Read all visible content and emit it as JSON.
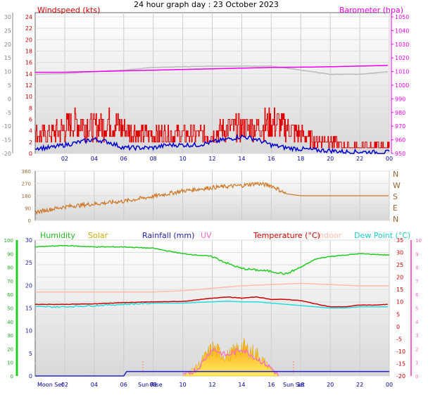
{
  "title": "24 hour graph day : 23 October 2023",
  "colors": {
    "wind_speed": "#e00000",
    "wind_avg": "#0000cc",
    "barometer": "#ee00ee",
    "barometer_prev": "#bbbbbb",
    "wind_dir": "#cc7722",
    "humidity": "#22cc22",
    "solar": "#f0c000",
    "rainfall": "#2222cc",
    "uv": "#ff66cc",
    "temperature": "#cc0000",
    "indoor": "#ffbbaa",
    "dew_point": "#22dddd",
    "x_ticks": "#000099",
    "axis_left": "#888888"
  },
  "chart_data": [
    {
      "type": "line",
      "x_tick_labels": [
        "02",
        "04",
        "06",
        "08",
        "10",
        "12",
        "14",
        "16",
        "18",
        "20",
        "22",
        "00"
      ],
      "left_axis": {
        "label": "Windspeed (kts)",
        "ylim": [
          0,
          24
        ],
        "ticks": [
          "0",
          "2",
          "4",
          "6",
          "8",
          "10",
          "12",
          "14",
          "16",
          "18",
          "20",
          "22",
          "24"
        ]
      },
      "right_axis": {
        "label": "Barometer (hpa)",
        "ylim": [
          950,
          1050
        ],
        "ticks": [
          "950",
          "960",
          "970",
          "980",
          "990",
          "1000",
          "1010",
          "1020",
          "1030",
          "1040",
          "1050"
        ]
      },
      "outer_axis": {
        "ticks": [
          "-20",
          "-15",
          "-10",
          "-5",
          "0",
          "5",
          "10",
          "15",
          "20",
          "25",
          "30"
        ]
      },
      "series": [
        {
          "name": "Windspeed (kts)",
          "x": [
            0,
            1,
            2,
            3,
            4,
            5,
            6,
            7,
            8,
            9,
            10,
            11,
            12,
            13,
            14,
            15,
            16,
            17,
            18,
            19,
            20,
            21,
            22,
            23,
            24
          ],
          "values": [
            3,
            3,
            4,
            5,
            4,
            5,
            4,
            3,
            3,
            3,
            3,
            3,
            3,
            4,
            4,
            4,
            5,
            4,
            3,
            2,
            2,
            1,
            1,
            1,
            1
          ]
        },
        {
          "x": [
            0,
            1,
            2,
            3,
            4,
            5,
            6,
            7,
            8,
            9,
            10,
            11,
            12,
            13,
            14,
            15,
            16,
            17,
            18,
            19,
            20,
            21,
            22,
            23,
            24
          ],
          "values": [
            1,
            1,
            1.5,
            2,
            2.5,
            2,
            1,
            1,
            1,
            1.5,
            1.5,
            1.5,
            2,
            2.5,
            3,
            2.5,
            1.5,
            1,
            0.8,
            0.6,
            0.5,
            0.3,
            0.3,
            0.2,
            0.2
          ]
        },
        {
          "name": "Barometer (hpa)",
          "x": [
            0,
            2,
            4,
            6,
            8,
            10,
            12,
            14,
            16,
            18,
            20,
            22,
            24
          ],
          "values": [
            1009.5,
            1009.5,
            1010,
            1010.5,
            1011,
            1011.5,
            1012,
            1012.5,
            1013,
            1013.2,
            1013.5,
            1014,
            1014.5
          ]
        },
        {
          "x": [
            0,
            2,
            4,
            6,
            8,
            10,
            12,
            14,
            16,
            18,
            20,
            22,
            24
          ],
          "values": [
            1008,
            1008.5,
            1010,
            1011,
            1013,
            1013.5,
            1014,
            1014,
            1014,
            1011,
            1008,
            1008,
            1010
          ]
        }
      ]
    },
    {
      "type": "line",
      "x_tick_labels": [
        "02",
        "04",
        "06",
        "08",
        "10",
        "12",
        "14",
        "16",
        "18",
        "20",
        "22",
        "00"
      ],
      "left_axis": {
        "ylim": [
          0,
          360
        ],
        "ticks": [
          "0",
          "90",
          "180",
          "270",
          "360"
        ]
      },
      "right_axis": {
        "ticks": [
          "N",
          "W",
          "S",
          "E",
          "N"
        ]
      },
      "series": [
        {
          "x": [
            0,
            2,
            4,
            6,
            8,
            10,
            12,
            14,
            15,
            16,
            17,
            18,
            20,
            22,
            24
          ],
          "values": [
            60,
            100,
            120,
            140,
            175,
            215,
            240,
            255,
            270,
            255,
            195,
            180,
            180,
            180,
            180
          ]
        }
      ]
    },
    {
      "type": "line",
      "x_tick_labels": [
        "02",
        "04",
        "06",
        "08",
        "10",
        "12",
        "14",
        "16",
        "18",
        "20",
        "22",
        "00"
      ],
      "left_axis_humidity": {
        "ylim": [
          0,
          100
        ],
        "ticks": [
          "0",
          "10",
          "20",
          "30",
          "40",
          "50",
          "60",
          "70",
          "80",
          "90",
          "100"
        ]
      },
      "left_axis_rain": {
        "ylim": [
          0,
          30
        ],
        "ticks": [
          "0",
          "5",
          "10",
          "15",
          "20",
          "25",
          "30"
        ]
      },
      "right_axis_temp": {
        "ylim": [
          -20,
          35
        ],
        "ticks": [
          "-20",
          "-15",
          "-10",
          "-5",
          "0",
          "5",
          "10",
          "15",
          "20",
          "25",
          "30",
          "35"
        ]
      },
      "right_axis_uv": {
        "ylim": [
          0,
          10
        ],
        "ticks": [
          "0",
          "1",
          "2",
          "3",
          "4",
          "5",
          "6",
          "7",
          "8",
          "9",
          "10"
        ]
      },
      "events": [
        "Moon Set",
        "Sun Rise",
        "Sun Set"
      ],
      "legend": [
        "Humidity",
        "Solar",
        "Rainfall (mm)",
        "UV",
        "Temperature (°C)",
        "Indoor",
        "Dew Point (°C)"
      ],
      "series": [
        {
          "name": "Humidity",
          "x": [
            0,
            2,
            4,
            6,
            8,
            10,
            12,
            13,
            14,
            15,
            16,
            17,
            18,
            19,
            20,
            22,
            24
          ],
          "values": [
            95,
            96,
            95,
            95,
            94,
            90,
            88,
            83,
            79,
            78,
            77,
            75,
            80,
            86,
            88,
            90,
            89
          ]
        },
        {
          "name": "Temperature (°C)",
          "x": [
            0,
            2,
            4,
            6,
            8,
            10,
            11,
            12,
            13,
            14,
            15,
            16,
            17,
            18,
            19,
            20,
            21,
            22,
            23,
            24
          ],
          "values": [
            9,
            9,
            9.2,
            9.7,
            10,
            10.2,
            10.8,
            11.5,
            12,
            11.5,
            12,
            11,
            11,
            10.5,
            9.2,
            8,
            8,
            8.7,
            8.7,
            9
          ]
        },
        {
          "name": "Dew Point (°C)",
          "x": [
            0,
            2,
            4,
            6,
            8,
            10,
            11,
            12,
            13,
            14,
            15,
            16,
            17,
            18,
            19,
            20,
            21,
            22,
            23,
            24
          ],
          "values": [
            8,
            8,
            8.5,
            9,
            9.5,
            9.5,
            9.8,
            10,
            10.3,
            10,
            10,
            9.5,
            9,
            8.5,
            8,
            7.5,
            7.5,
            8,
            8,
            8
          ]
        },
        {
          "name": "Indoor",
          "x": [
            0,
            2,
            4,
            6,
            8,
            10,
            12,
            14,
            16,
            18,
            20,
            22,
            24
          ],
          "values": [
            14,
            14,
            14,
            14,
            14,
            14.5,
            15.5,
            16.5,
            17,
            17.5,
            17,
            16.5,
            16.5
          ]
        },
        {
          "name": "Rainfall (mm)",
          "x": [
            0,
            6,
            6.2,
            24
          ],
          "values": [
            0,
            0,
            1,
            1
          ]
        },
        {
          "name": "Solar",
          "x": [
            10,
            11,
            12,
            13,
            14,
            15,
            16,
            16.5
          ],
          "values": [
            0,
            0.3,
            0.85,
            0.6,
            0.9,
            0.7,
            0.2,
            0
          ]
        },
        {
          "name": "UV",
          "x": [
            10,
            11,
            12,
            13,
            14,
            15,
            16,
            16.5
          ],
          "values": [
            0,
            0.5,
            2,
            1.5,
            2,
            1.3,
            0.6,
            0
          ]
        }
      ]
    }
  ]
}
